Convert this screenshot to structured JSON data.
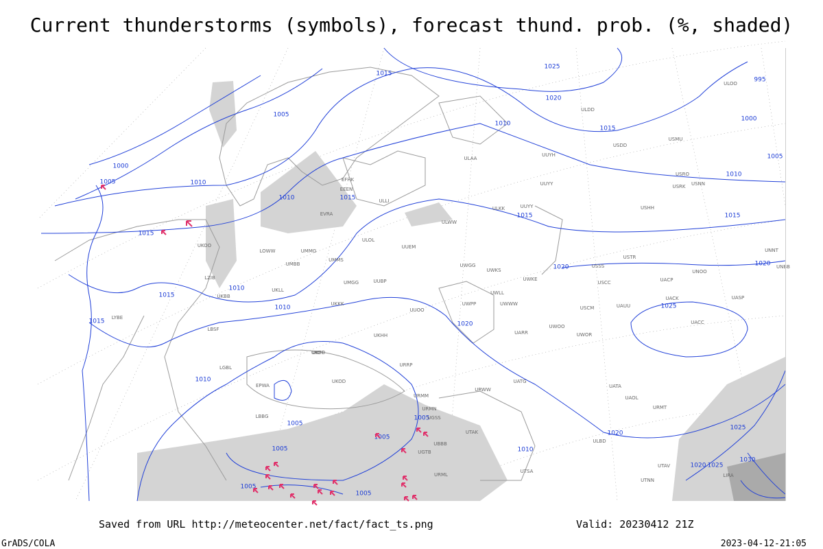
{
  "header": {
    "title": "Current thunderstorms (symbols), forecast thund. prob. (%, shaded)"
  },
  "map": {
    "isobar_labels": [
      "1015",
      "1025",
      "995",
      "1020",
      "1005",
      "1010",
      "1015",
      "1000",
      "1000",
      "1005",
      "1010",
      "1010",
      "1015",
      "1005",
      "1010",
      "1015",
      "1015",
      "1015",
      "1020",
      "1020",
      "1015",
      "1010",
      "1010",
      "1025",
      "1015",
      "1020",
      "1010",
      "1005",
      "1005",
      "1005",
      "1005",
      "1020",
      "1025",
      "1010",
      "1030",
      "1020",
      "1025",
      "1005",
      "1005"
    ],
    "station_labels": [
      "ULOO",
      "ULDD",
      "USDD",
      "USMU",
      "ULAA",
      "UUYY",
      "USRO",
      "USRK",
      "USNN",
      "ULLI",
      "UUYH",
      "USHH",
      "EFHK",
      "EEEN",
      "ULKK",
      "UUYY",
      "ULOL",
      "EVRA",
      "UUEM",
      "ULWW",
      "UMMG",
      "UMMS",
      "UWGG",
      "UWKS",
      "USSS",
      "USTR",
      "UNNT",
      "UNBB",
      "UMBB",
      "UMGG",
      "UUBP",
      "UWKE",
      "UWLL",
      "UWWW",
      "USCC",
      "UACP",
      "UNOO",
      "UKLL",
      "UKKK",
      "UUOO",
      "UWPP",
      "USCM",
      "UAUU",
      "UACK",
      "UASP",
      "UKHH",
      "UARR",
      "UWOO",
      "UWOR",
      "UACC",
      "UKOO",
      "URRP",
      "URWW",
      "UATG",
      "UATA",
      "UAOL",
      "URMT",
      "URMM",
      "URMN",
      "UGSS",
      "UGTB",
      "UBBB",
      "URML",
      "UTAK",
      "UTSA",
      "UTAV",
      "UTNN",
      "ULBD",
      "LIRA",
      "LYBE",
      "LBSF",
      "LGBL",
      "LBBG",
      "EPWA",
      "LOWW",
      "LZIB",
      "UKBB",
      "UKOO",
      "UKFF",
      "UKOD"
    ]
  },
  "footer": {
    "source": "Saved from URL http://meteocenter.net/fact/fact_ts.png",
    "valid": "Valid: 20230412 21Z",
    "software": "GrADS/COLA",
    "timestamp": "2023-04-12-21:05"
  }
}
